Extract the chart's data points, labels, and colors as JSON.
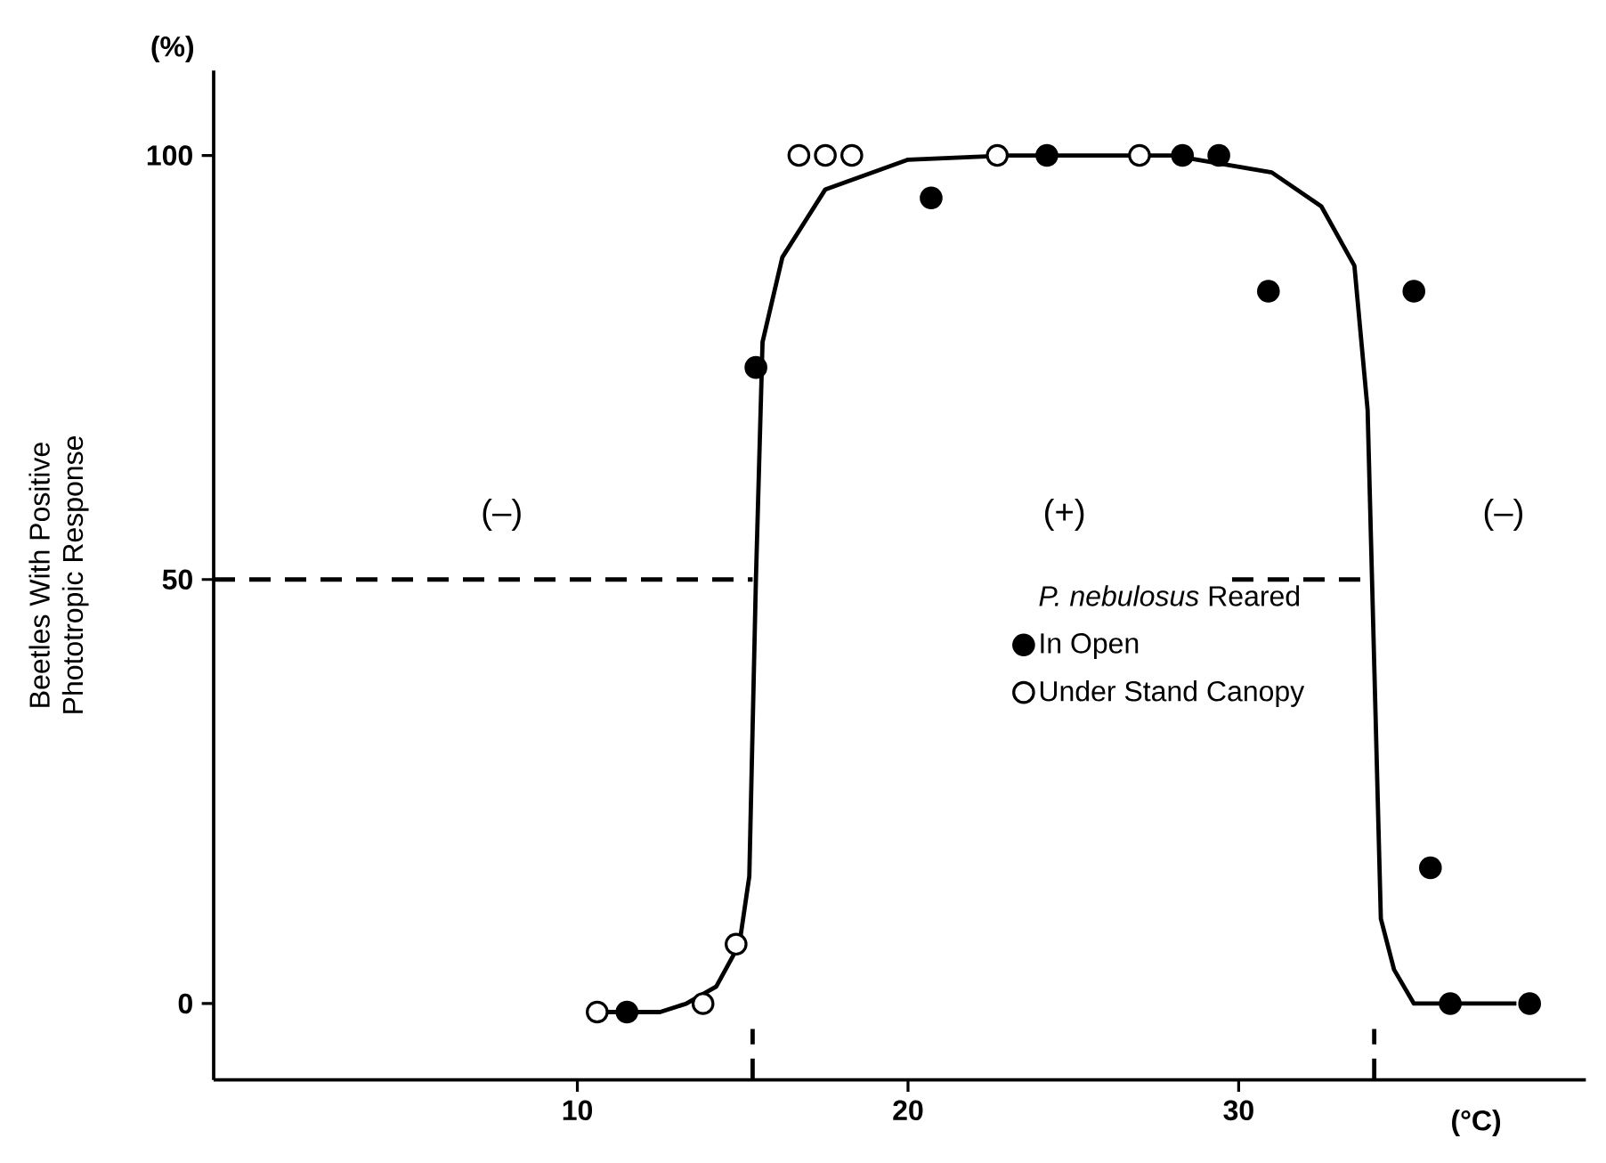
{
  "chart_data": {
    "type": "scatter",
    "xlabel": "(°C)",
    "ylabel": "Beetles With Positive\nPhototropic Response",
    "legend_title": "*P. nebulosus* Reared",
    "legend": "right",
    "xlim": [
      -1,
      40.5
    ],
    "ylim": [
      -9,
      110
    ],
    "xticks": [
      10,
      20,
      30
    ],
    "yticks": [
      0,
      50,
      100
    ],
    "annotations": [
      "(%)",
      "(–)",
      "(+)",
      "(–)"
    ],
    "series": [
      {
        "type": "line",
        "marker": "none",
        "color": "#000000",
        "line_style": "solid",
        "x": [
          10.4,
          11.5,
          12.5,
          13.3,
          14.2,
          14.9,
          15.2,
          15.4,
          15.6,
          16.2,
          17.5,
          20,
          23,
          28,
          31,
          32.5,
          33.5,
          33.9,
          34.1,
          34.3,
          34.7,
          35.3,
          36.2,
          38.4
        ],
        "values": [
          -1,
          -1,
          -1,
          0,
          2,
          7,
          15,
          50,
          78,
          88,
          96,
          99.5,
          100,
          100,
          98,
          94,
          87,
          70,
          40,
          10,
          4,
          0,
          0,
          0
        ]
      },
      {
        "type": "line",
        "marker": "none",
        "color": "#000000",
        "line_style": "dashed",
        "x": [
          -1,
          15.3,
          15.35,
          29.8,
          34
        ],
        "values": [
          50,
          50,
          null,
          50,
          50
        ]
      },
      {
        "type": "line",
        "marker": "none",
        "color": "#000000",
        "line_style": "dashed",
        "x": [
          15.3,
          15.3
        ],
        "values": [
          -9,
          -3
        ]
      },
      {
        "type": "line",
        "marker": "none",
        "color": "#000000",
        "line_style": "dashed",
        "x": [
          34.1,
          34.1
        ],
        "values": [
          -9,
          -3
        ]
      },
      {
        "name": "In Open",
        "marker": "circle",
        "color": "#000000",
        "x": [
          11.5,
          15.4,
          20.7,
          24.2,
          28.3,
          29.4,
          30.9,
          35.3,
          35.8,
          36.4,
          38.8
        ],
        "values": [
          -1,
          75,
          95,
          100,
          100,
          100,
          84,
          84,
          16,
          0,
          0
        ]
      },
      {
        "name": "Under Stand Canopy",
        "marker": "circle",
        "color": "#ffffff",
        "x": [
          10.6,
          13.8,
          14.8,
          16.7,
          17.5,
          18.3,
          22.7,
          27.0
        ],
        "values": [
          -1,
          0,
          7,
          100,
          100,
          100,
          100,
          100
        ]
      }
    ]
  }
}
